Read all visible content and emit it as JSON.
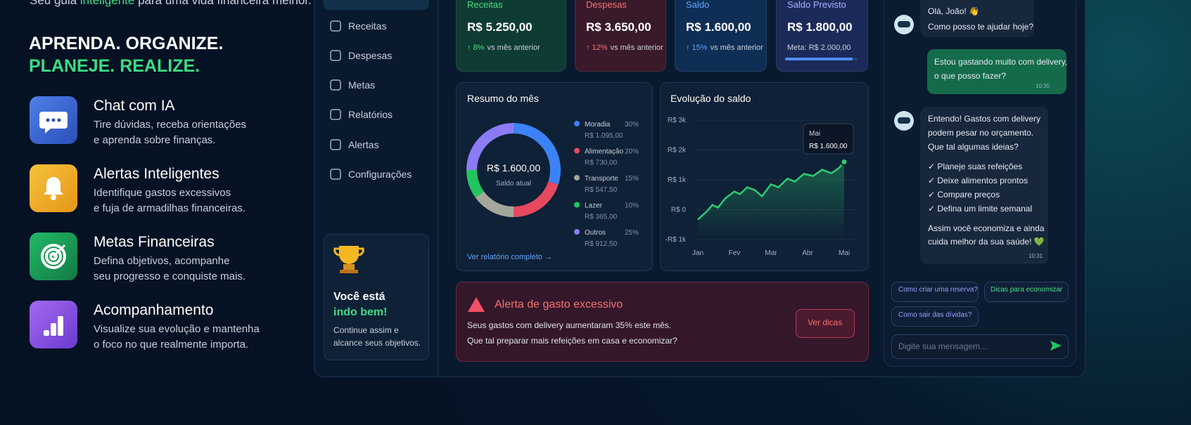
{
  "tagline": {
    "prefix": "Seu guia ",
    "highlight": "inteligente",
    "suffix": " para uma vida financeira melhor."
  },
  "headline": {
    "line1": "APRENDA. ORGANIZE.",
    "line2": "PLANEJE. REALIZE."
  },
  "features": [
    {
      "title": "Chat com IA",
      "lines": [
        "Tire dúvidas, receba orientações",
        "e aprenda sobre finanças."
      ]
    },
    {
      "title": "Alertas Inteligentes",
      "lines": [
        "Identifique gastos excessivos",
        "e fuja de armadilhas financeiras."
      ]
    },
    {
      "title": "Metas Financeiras",
      "lines": [
        "Defina objetivos, acompanhe",
        "seu progresso e conquiste mais."
      ]
    },
    {
      "title": "Acompanhamento",
      "lines": [
        "Visualize sua evolução e mantenha",
        "o foco no que realmente importa."
      ]
    }
  ],
  "sidebar": {
    "items": [
      "Receitas",
      "Despesas",
      "Metas",
      "Relatórios",
      "Alertas",
      "Configurações"
    ],
    "promo": {
      "title_1": "Você está",
      "title_2": "indo bem!",
      "lines": [
        "Continue assim e",
        "alcance seus objetivos."
      ]
    }
  },
  "cards": [
    {
      "label": "Receitas",
      "value": "R$ 5.250,00",
      "change": "↑ 8%",
      "note": "vs mês anterior"
    },
    {
      "label": "Despesas",
      "value": "R$ 3.650,00",
      "change": "↑ 12%",
      "note": "vs mês anterior"
    },
    {
      "label": "Saldo",
      "value": "R$ 1.600,00",
      "change": "↑ 15%",
      "note": "vs mês anterior"
    },
    {
      "label": "Saldo Previsto",
      "value": "R$ 1.800,00",
      "note": "Meta: R$ 2.000,00"
    }
  ],
  "chart_data": [
    {
      "type": "pie",
      "title": "Resumo do mês",
      "center_value": "R$ 1.600,00",
      "center_label": "Saldo atual",
      "categories": [
        "Moradia",
        "Alimentação",
        "Transporte",
        "Lazer",
        "Outros"
      ],
      "values": [
        30,
        20,
        15,
        10,
        25
      ],
      "value_labels": [
        "30%",
        "20%",
        "15%",
        "10%",
        "25%"
      ],
      "amounts": [
        "R$ 1.095,00",
        "R$ 730,00",
        "R$ 547,50",
        "R$ 365,00",
        "R$ 912,50"
      ],
      "colors": [
        "#3b82f6",
        "#e5485f",
        "#a3a89a",
        "#22c55e",
        "#8b7cf6"
      ],
      "link": "Ver relatório completo →"
    },
    {
      "type": "line",
      "title": "Evolução do saldo",
      "x": [
        0,
        0.25,
        0.4,
        0.55,
        0.75,
        1,
        1.15,
        1.35,
        1.55,
        1.75,
        2,
        2.2,
        2.45,
        2.65,
        2.9,
        3.15,
        3.4,
        3.65,
        3.85,
        4
      ],
      "series": [
        {
          "color": "#2ecc71",
          "values": [
            -330,
            -50,
            160,
            70,
            380,
            610,
            520,
            750,
            660,
            450,
            850,
            750,
            1040,
            940,
            1200,
            1130,
            1340,
            1220,
            1390,
            1600
          ]
        }
      ],
      "xlim": [
        0,
        4
      ],
      "xticks": [
        {
          "value": 0,
          "label": "Jan"
        },
        {
          "value": 1,
          "label": "Fev"
        },
        {
          "value": 2,
          "label": "Mar"
        },
        {
          "value": 3,
          "label": "Abr"
        },
        {
          "value": 4,
          "label": "Mai"
        }
      ],
      "ylim": [
        -1000,
        3000
      ],
      "yticks": [
        {
          "value": -1000,
          "label": "-R$ 1k"
        },
        {
          "value": 0,
          "label": "R$ 0"
        },
        {
          "value": 1000,
          "label": "R$ 1k"
        },
        {
          "value": 2000,
          "label": "R$ 2k"
        },
        {
          "value": 3000,
          "label": "R$ 3k"
        }
      ],
      "annotation": {
        "title": "Mai",
        "text": "R$ 1.600,00"
      }
    }
  ],
  "alert": {
    "title": "Alerta de gasto excessivo",
    "lines": [
      "Seus gastos com delivery aumentaram 35% este mês.",
      "Que tal preparar mais refeições em casa e economizar?"
    ],
    "button": "Ver dicas"
  },
  "chat": {
    "messages": [
      {
        "lines": [
          "Olá, João! 👋",
          "Como posso te ajudar hoje?"
        ]
      },
      {
        "lines": [
          "Estou gastando muito com delivery,",
          "o que posso fazer?"
        ],
        "time": "10:30"
      },
      {
        "lines": [
          "Entendo! Gastos com delivery",
          "podem pesar no orçamento.",
          "Que tal algumas ideias?",
          "✓ Planeje suas refeições",
          "✓ Deixe alimentos prontos",
          "✓ Compare preços",
          "✓ Defina um limite semanal",
          "Assim você economiza e ainda",
          "cuida melhor da sua saúde! 💚"
        ],
        "time": "10:31"
      }
    ],
    "suggestions": [
      "Como criar uma reserva?",
      "Dicas para economizar",
      "Como sair das dívidas?"
    ],
    "input_placeholder": "Digite sua mensagem..."
  }
}
